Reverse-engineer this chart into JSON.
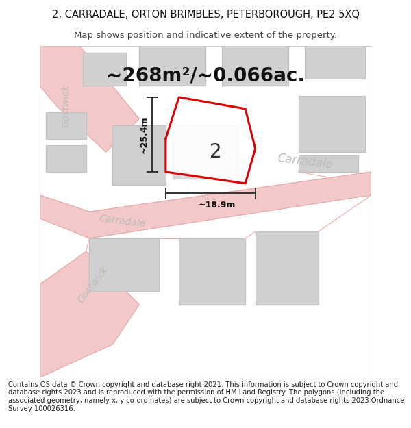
{
  "title_line1": "2, CARRADALE, ORTON BRIMBLES, PETERBOROUGH, PE2 5XQ",
  "title_line2": "Map shows position and indicative extent of the property.",
  "footer_text": "Contains OS data © Crown copyright and database right 2021. This information is subject to Crown copyright and database rights 2023 and is reproduced with the permission of HM Land Registry. The polygons (including the associated geometry, namely x, y co-ordinates) are subject to Crown copyright and database rights 2023 Ordnance Survey 100026316.",
  "area_label": "~268m²/~0.066ac.",
  "number_label": "2",
  "width_label": "~18.9m",
  "height_label": "~25.4m",
  "map_bg": "#eeebeb",
  "road_color": "#f2c8c8",
  "road_edge_color": "#e8a0a0",
  "building_color": "#d0d0d0",
  "building_edge_color": "#bbbbbb",
  "property_fill": "#f0f0f0",
  "property_outline_color": "#dd0000",
  "dim_color": "#333333",
  "street_color": "#bbbbbb",
  "title_fontsize": 10.5,
  "subtitle_fontsize": 9.5,
  "footer_fontsize": 7.2,
  "area_fontsize": 20,
  "number_fontsize": 20,
  "dim_fontsize": 9,
  "street_fontsize": 12
}
